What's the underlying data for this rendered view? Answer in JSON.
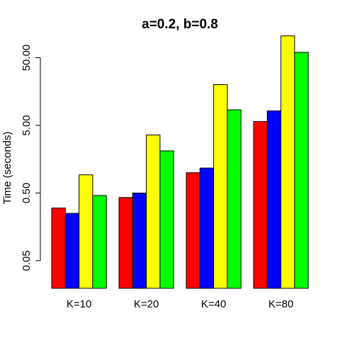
{
  "chart_data": {
    "type": "bar",
    "title": "a=0.2, b=0.8",
    "ylabel": "Time (seconds)",
    "xlabel": "",
    "y_scale": "log10",
    "ylim": [
      0.02,
      150
    ],
    "yticks": [
      0.05,
      0.5,
      5,
      50
    ],
    "ytick_labels": [
      "0.05",
      "0.50",
      "5.00",
      "50.00"
    ],
    "categories": [
      "K=10",
      "K=20",
      "K=40",
      "K=80"
    ],
    "grid": false,
    "legend": "none",
    "series": [
      {
        "color": "#ff0000",
        "values": [
          0.3,
          0.43,
          1.0,
          5.7
        ]
      },
      {
        "color": "#0000ff",
        "values": [
          0.25,
          0.5,
          1.17,
          8.2
        ]
      },
      {
        "color": "#ffff00",
        "values": [
          0.93,
          3.6,
          20.0,
          105.0
        ]
      },
      {
        "color": "#00ff00",
        "values": [
          0.46,
          2.1,
          8.5,
          60.0
        ]
      }
    ]
  }
}
